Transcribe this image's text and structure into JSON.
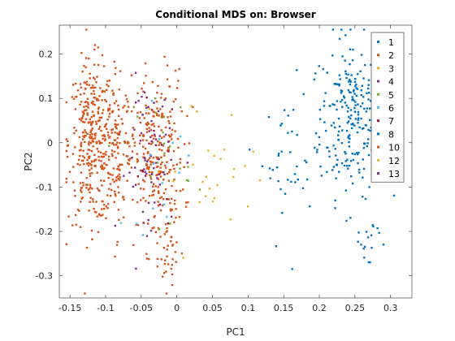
{
  "chart_data": {
    "type": "scatter",
    "title": "Conditional MDS on: Browser",
    "xlabel": "PC1",
    "ylabel": "PC2",
    "xlim": [
      -0.165,
      0.33
    ],
    "ylim": [
      -0.35,
      0.265
    ],
    "x_ticks": [
      -0.15,
      -0.1,
      -0.05,
      0,
      0.05,
      0.1,
      0.15,
      0.2,
      0.25,
      0.3
    ],
    "x_tick_labels": [
      "-0.15",
      "-0.1",
      "-0.05",
      "0",
      "0.05",
      "0.1",
      "0.15",
      "0.2",
      "0.25",
      "0.3"
    ],
    "y_ticks": [
      -0.3,
      -0.2,
      -0.1,
      0,
      0.1,
      0.2
    ],
    "y_tick_labels": [
      "-0.3",
      "-0.2",
      "-0.1",
      "0",
      "0.1",
      "0.2"
    ],
    "grid": false,
    "legend_position": "top-right",
    "series": [
      {
        "name": "1",
        "color": "#0072BD",
        "clusters": [
          {
            "cx": 0.245,
            "cy": 0.06,
            "sx": 0.022,
            "sy": 0.09,
            "n": 230
          },
          {
            "cx": 0.16,
            "cy": -0.03,
            "sx": 0.02,
            "sy": 0.06,
            "n": 35
          },
          {
            "cx": 0.27,
            "cy": -0.22,
            "sx": 0.015,
            "sy": 0.04,
            "n": 18
          }
        ]
      },
      {
        "name": "2",
        "color": "#D95319",
        "clusters": [
          {
            "cx": -0.12,
            "cy": 0.0,
            "sx": 0.016,
            "sy": 0.09,
            "n": 330
          },
          {
            "cx": -0.085,
            "cy": 0.0,
            "sx": 0.01,
            "sy": 0.09,
            "n": 120
          },
          {
            "cx": -0.03,
            "cy": -0.04,
            "sx": 0.02,
            "sy": 0.1,
            "n": 260
          },
          {
            "cx": -0.01,
            "cy": -0.26,
            "sx": 0.01,
            "sy": 0.03,
            "n": 25
          }
        ]
      },
      {
        "name": "3",
        "color": "#EDB120",
        "clusters": [
          {
            "cx": 0.03,
            "cy": -0.05,
            "sx": 0.04,
            "sy": 0.08,
            "n": 18
          }
        ]
      },
      {
        "name": "4",
        "color": "#7E2F8E",
        "clusters": [
          {
            "cx": -0.03,
            "cy": -0.03,
            "sx": 0.02,
            "sy": 0.09,
            "n": 40
          }
        ]
      },
      {
        "name": "5",
        "color": "#77AC30",
        "clusters": [
          {
            "cx": -0.02,
            "cy": -0.02,
            "sx": 0.02,
            "sy": 0.08,
            "n": 20
          }
        ]
      },
      {
        "name": "6",
        "color": "#4DBEEE",
        "clusters": [
          {
            "cx": -0.025,
            "cy": -0.06,
            "sx": 0.025,
            "sy": 0.07,
            "n": 15
          }
        ]
      },
      {
        "name": "7",
        "color": "#A2142F",
        "clusters": [
          {
            "cx": -0.03,
            "cy": -0.05,
            "sx": 0.02,
            "sy": 0.08,
            "n": 15
          }
        ]
      },
      {
        "name": "8",
        "color": "#0072BD",
        "clusters": [
          {
            "cx": 0.2,
            "cy": -0.05,
            "sx": 0.03,
            "sy": 0.08,
            "n": 10
          }
        ]
      },
      {
        "name": "10",
        "color": "#D95319",
        "clusters": [
          {
            "cx": -0.05,
            "cy": -0.05,
            "sx": 0.03,
            "sy": 0.08,
            "n": 15
          }
        ]
      },
      {
        "name": "12",
        "color": "#EDB120",
        "clusters": [
          {
            "cx": 0.06,
            "cy": -0.1,
            "sx": 0.03,
            "sy": 0.06,
            "n": 10
          }
        ]
      },
      {
        "name": "13",
        "color": "#7E2F8E",
        "clusters": [
          {
            "cx": -0.04,
            "cy": -0.02,
            "sx": 0.02,
            "sy": 0.08,
            "n": 20
          }
        ]
      }
    ]
  }
}
